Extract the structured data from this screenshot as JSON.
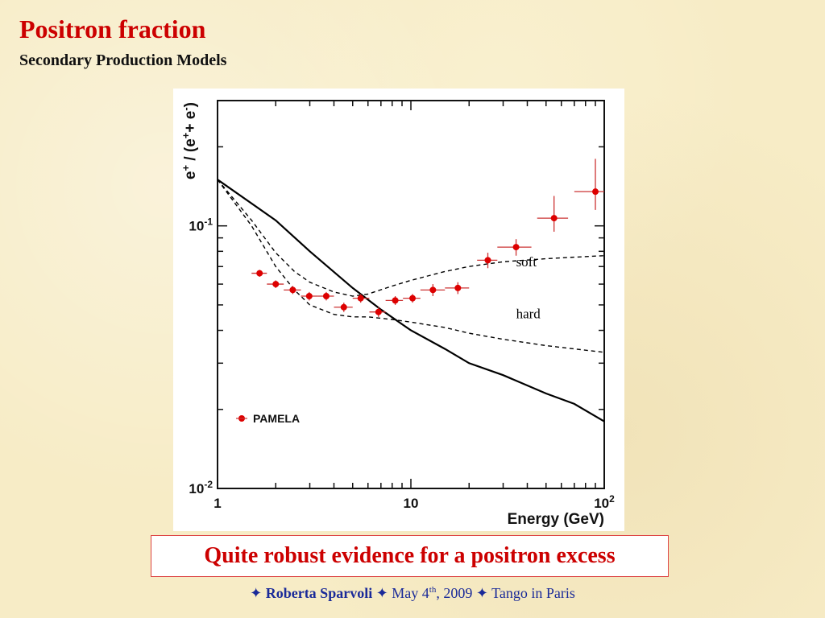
{
  "slide": {
    "title": "Positron fraction",
    "subtitle": "Secondary Production Models",
    "callout": "Quite robust evidence for a positron excess",
    "footer": {
      "star": "✦",
      "author": "Roberta Sparvoli",
      "date_main": "May 4",
      "date_sup": "th",
      "date_rest": ", 2009",
      "event": "Tango in Paris"
    }
  },
  "chart_data": {
    "type": "scatter",
    "title": "",
    "xlabel": "Energy (GeV)",
    "ylabel": "e+ / (e+ + e-)",
    "ylabel_parts": {
      "e": "e",
      "plus": "+",
      "open": " / (e",
      "plus2": "+",
      "mid": "+ e",
      "minus": "-",
      "close": ")"
    },
    "x_scale": "log",
    "y_scale": "log",
    "xlim": [
      1,
      100
    ],
    "ylim": [
      0.01,
      0.3
    ],
    "x_tick_labels": [
      {
        "value": 1,
        "base": "1",
        "exp": ""
      },
      {
        "value": 10,
        "base": "10",
        "exp": ""
      },
      {
        "value": 100,
        "base": "10",
        "exp": "2"
      }
    ],
    "y_tick_labels": [
      {
        "value": 0.01,
        "base": "10",
        "exp": "-2"
      },
      {
        "value": 0.1,
        "base": "10",
        "exp": "-1"
      }
    ],
    "grid": false,
    "legend": {
      "position": "bottom-left",
      "entries": [
        "PAMELA"
      ]
    },
    "series": [
      {
        "name": "PAMELA",
        "kind": "points",
        "color": "#dd0000",
        "points": [
          {
            "x": 1.65,
            "y": 0.066,
            "xlo": 1.5,
            "xhi": 1.8,
            "ylo": 0.064,
            "yhi": 0.068
          },
          {
            "x": 2.0,
            "y": 0.06,
            "xlo": 1.8,
            "xhi": 2.2,
            "ylo": 0.058,
            "yhi": 0.062
          },
          {
            "x": 2.45,
            "y": 0.057,
            "xlo": 2.2,
            "xhi": 2.7,
            "ylo": 0.055,
            "yhi": 0.059
          },
          {
            "x": 2.98,
            "y": 0.054,
            "xlo": 2.7,
            "xhi": 3.3,
            "ylo": 0.052,
            "yhi": 0.056
          },
          {
            "x": 3.65,
            "y": 0.054,
            "xlo": 3.3,
            "xhi": 4.0,
            "ylo": 0.052,
            "yhi": 0.056
          },
          {
            "x": 4.5,
            "y": 0.049,
            "xlo": 4.0,
            "xhi": 5.0,
            "ylo": 0.047,
            "yhi": 0.051
          },
          {
            "x": 5.5,
            "y": 0.053,
            "xlo": 5.0,
            "xhi": 6.1,
            "ylo": 0.051,
            "yhi": 0.055
          },
          {
            "x": 6.8,
            "y": 0.047,
            "xlo": 6.1,
            "xhi": 7.4,
            "ylo": 0.045,
            "yhi": 0.049
          },
          {
            "x": 8.3,
            "y": 0.052,
            "xlo": 7.4,
            "xhi": 9.1,
            "ylo": 0.05,
            "yhi": 0.054
          },
          {
            "x": 10.2,
            "y": 0.053,
            "xlo": 9.1,
            "xhi": 11.2,
            "ylo": 0.051,
            "yhi": 0.055
          },
          {
            "x": 13.0,
            "y": 0.057,
            "xlo": 11.2,
            "xhi": 15.0,
            "ylo": 0.054,
            "yhi": 0.06
          },
          {
            "x": 17.5,
            "y": 0.058,
            "xlo": 15.0,
            "xhi": 20.0,
            "ylo": 0.055,
            "yhi": 0.061
          },
          {
            "x": 25.0,
            "y": 0.074,
            "xlo": 22.0,
            "xhi": 28.0,
            "ylo": 0.069,
            "yhi": 0.079
          },
          {
            "x": 35.0,
            "y": 0.083,
            "xlo": 28.0,
            "xhi": 42.0,
            "ylo": 0.077,
            "yhi": 0.089
          },
          {
            "x": 55.0,
            "y": 0.107,
            "xlo": 45.0,
            "xhi": 65.0,
            "ylo": 0.095,
            "yhi": 0.13
          },
          {
            "x": 90.0,
            "y": 0.135,
            "xlo": 70.0,
            "xhi": 100.0,
            "ylo": 0.115,
            "yhi": 0.18
          }
        ]
      },
      {
        "name": "",
        "kind": "line",
        "style": "solid",
        "x": [
          1,
          2,
          3,
          5,
          7,
          10,
          15,
          20,
          30,
          50,
          70,
          100
        ],
        "y": [
          0.15,
          0.105,
          0.08,
          0.058,
          0.048,
          0.04,
          0.034,
          0.03,
          0.027,
          0.023,
          0.021,
          0.018
        ]
      },
      {
        "name": "soft",
        "kind": "line",
        "style": "dashed",
        "x": [
          1,
          1.5,
          2,
          2.5,
          3,
          4,
          5,
          6,
          8,
          10,
          15,
          20,
          30,
          50,
          70,
          100
        ],
        "y": [
          0.15,
          0.105,
          0.079,
          0.067,
          0.061,
          0.056,
          0.054,
          0.055,
          0.059,
          0.062,
          0.067,
          0.07,
          0.073,
          0.075,
          0.076,
          0.077
        ]
      },
      {
        "name": "hard",
        "kind": "line",
        "style": "dashed",
        "x": [
          1,
          1.5,
          2,
          2.5,
          3,
          4,
          5,
          6,
          8,
          10,
          15,
          20,
          30,
          50,
          70,
          100
        ],
        "y": [
          0.15,
          0.1,
          0.07,
          0.057,
          0.05,
          0.046,
          0.045,
          0.045,
          0.044,
          0.043,
          0.041,
          0.039,
          0.037,
          0.035,
          0.034,
          0.033
        ]
      }
    ],
    "annotations": [
      {
        "text": "soft",
        "x": 35,
        "y": 0.07
      },
      {
        "text": "hard",
        "x": 35,
        "y": 0.0445
      }
    ]
  }
}
